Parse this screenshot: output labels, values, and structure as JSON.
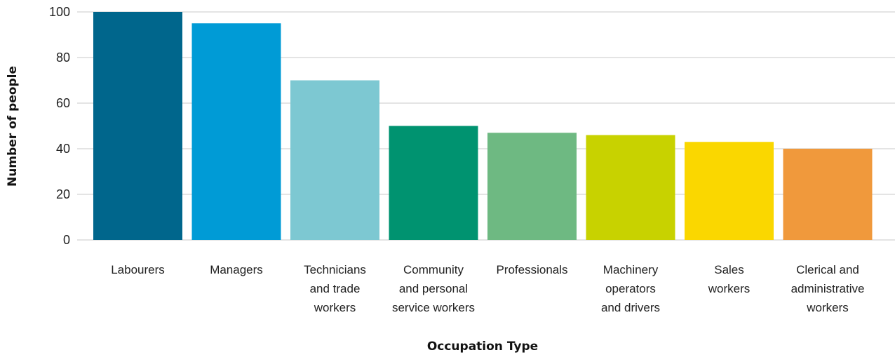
{
  "chart_data": {
    "type": "bar",
    "title": "",
    "xlabel": "Occupation Type",
    "ylabel": "Number of people",
    "ylim": [
      0,
      100
    ],
    "yticks": [
      0,
      20,
      40,
      60,
      80,
      100
    ],
    "grid": true,
    "legend": "none",
    "categories": [
      [
        "Labourers"
      ],
      [
        "Managers"
      ],
      [
        "Technicians",
        "and trade",
        "workers"
      ],
      [
        "Community",
        "and personal",
        "service workers"
      ],
      [
        "Professionals"
      ],
      [
        "Machinery",
        "operators",
        "and drivers"
      ],
      [
        "Sales",
        "workers"
      ],
      [
        "Clerical and",
        "administrative",
        "workers"
      ]
    ],
    "values": [
      100,
      95,
      70,
      50,
      47,
      46,
      43,
      40
    ],
    "colors": [
      "#00668c",
      "#009bd6",
      "#7dc8d2",
      "#009370",
      "#6eb982",
      "#c8d200",
      "#fad700",
      "#f0993c"
    ],
    "gridColor": "#c8c8c8"
  }
}
